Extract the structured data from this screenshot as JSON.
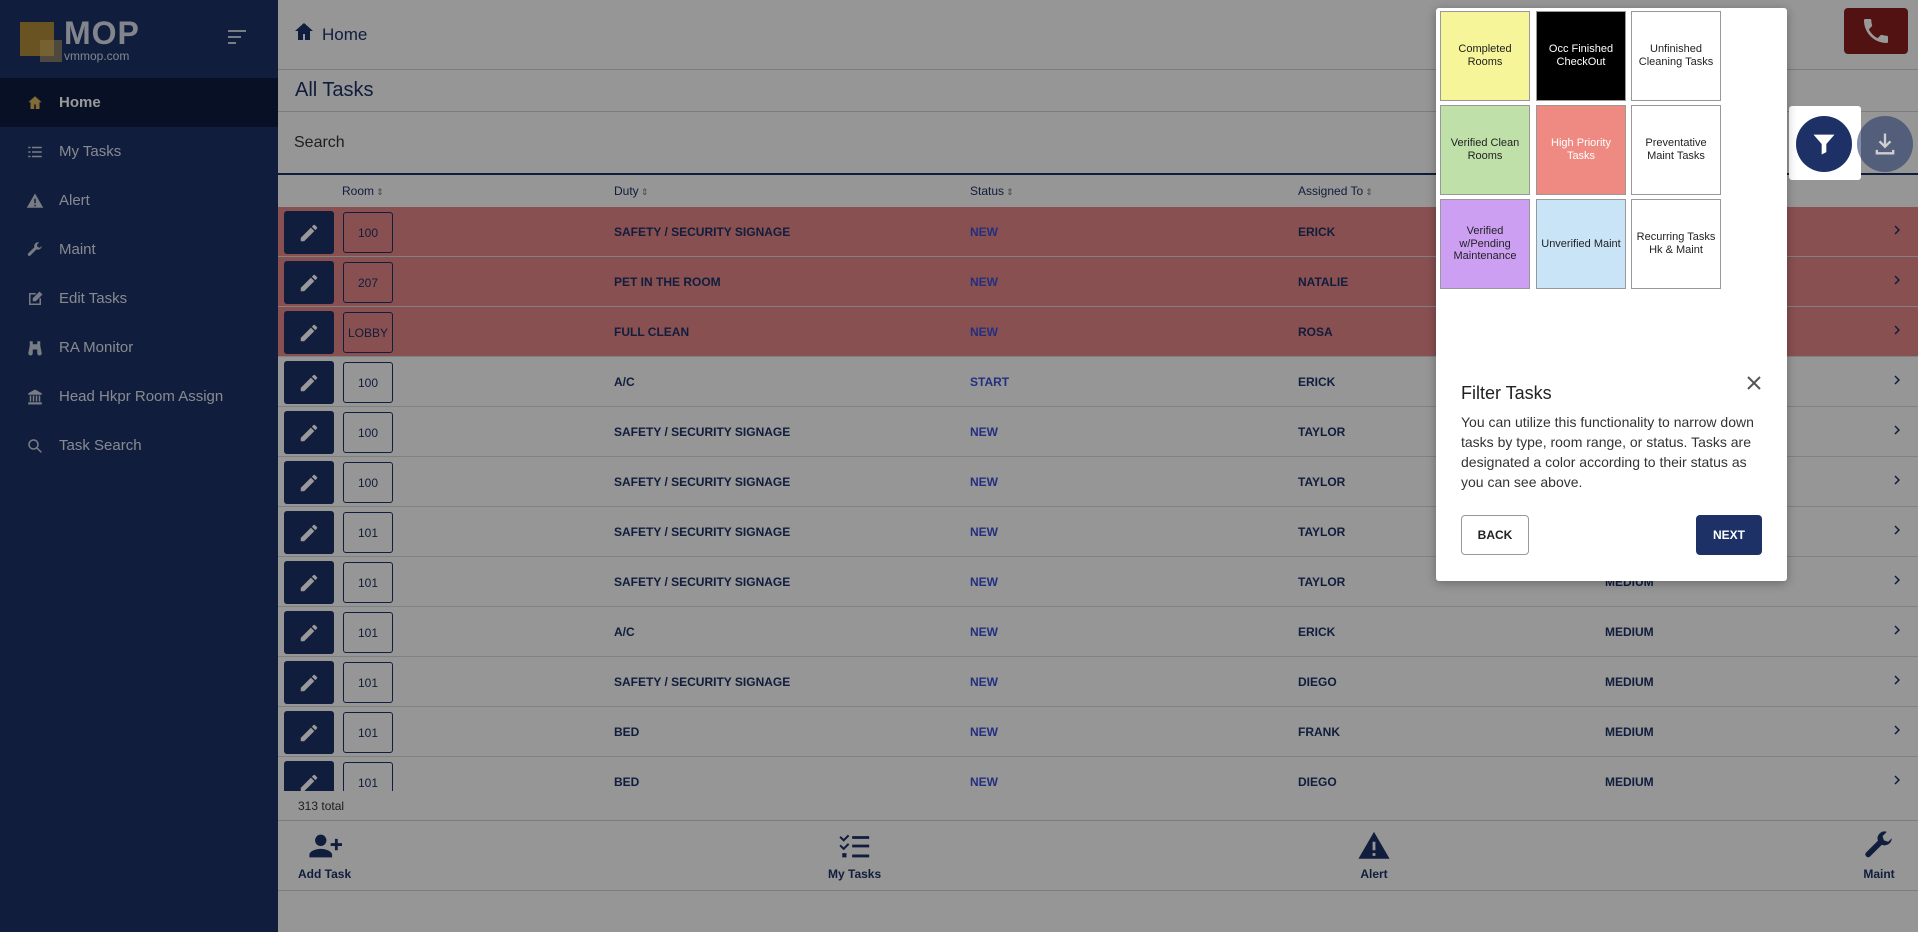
{
  "brand": {
    "name": "MOP",
    "domain": "vmmop.com"
  },
  "sidebar": {
    "items": [
      {
        "label": "Home",
        "icon": "home-icon",
        "active": true
      },
      {
        "label": "My Tasks",
        "icon": "tasks-list-icon"
      },
      {
        "label": "Alert",
        "icon": "warning-icon"
      },
      {
        "label": "Maint",
        "icon": "wrench-icon"
      },
      {
        "label": "Edit Tasks",
        "icon": "edit-icon"
      },
      {
        "label": "RA Monitor",
        "icon": "binoculars-icon"
      },
      {
        "label": "Head Hkpr Room Assign",
        "icon": "building-icon"
      },
      {
        "label": "Task Search",
        "icon": "search-icon"
      }
    ]
  },
  "header": {
    "breadcrumb": "Home"
  },
  "page": {
    "title": "All Tasks",
    "search_label": "Search"
  },
  "table": {
    "columns": {
      "room": "Room",
      "duty": "Duty",
      "status": "Status",
      "assigned": "Assigned To"
    },
    "rows": [
      {
        "room": "100",
        "duty": "SAFETY / SECURITY SIGNAGE",
        "status": "NEW",
        "assigned": "ERICK",
        "priority": "",
        "highlight": true
      },
      {
        "room": "207",
        "duty": "PET IN THE ROOM",
        "status": "NEW",
        "assigned": "NATALIE",
        "priority": "",
        "highlight": true
      },
      {
        "room": "LOBBY",
        "duty": "FULL CLEAN",
        "status": "NEW",
        "assigned": "ROSA",
        "priority": "",
        "highlight": true
      },
      {
        "room": "100",
        "duty": "A/C",
        "status": "START",
        "assigned": "ERICK",
        "priority": ""
      },
      {
        "room": "100",
        "duty": "SAFETY / SECURITY SIGNAGE",
        "status": "NEW",
        "assigned": "TAYLOR",
        "priority": ""
      },
      {
        "room": "100",
        "duty": "SAFETY / SECURITY SIGNAGE",
        "status": "NEW",
        "assigned": "TAYLOR",
        "priority": ""
      },
      {
        "room": "101",
        "duty": "SAFETY / SECURITY SIGNAGE",
        "status": "NEW",
        "assigned": "TAYLOR",
        "priority": ""
      },
      {
        "room": "101",
        "duty": "SAFETY / SECURITY SIGNAGE",
        "status": "NEW",
        "assigned": "TAYLOR",
        "priority": "MEDIUM"
      },
      {
        "room": "101",
        "duty": "A/C",
        "status": "NEW",
        "assigned": "ERICK",
        "priority": "MEDIUM"
      },
      {
        "room": "101",
        "duty": "SAFETY / SECURITY SIGNAGE",
        "status": "NEW",
        "assigned": "DIEGO",
        "priority": "MEDIUM"
      },
      {
        "room": "101",
        "duty": "BED",
        "status": "NEW",
        "assigned": "FRANK",
        "priority": "MEDIUM"
      },
      {
        "room": "101",
        "duty": "BED",
        "status": "NEW",
        "assigned": "DIEGO",
        "priority": "MEDIUM"
      }
    ],
    "total": "313 total"
  },
  "bottom_nav": [
    {
      "label": "Add Task",
      "icon": "add-user-icon"
    },
    {
      "label": "My Tasks",
      "icon": "tasks-list-icon"
    },
    {
      "label": "Alert",
      "icon": "warning-icon"
    },
    {
      "label": "Maint",
      "icon": "wrench-icon"
    }
  ],
  "popover": {
    "legend": [
      {
        "label": "Completed Rooms",
        "bg": "#f7f59a",
        "fg": "#222222"
      },
      {
        "label": "Occ Finished CheckOut",
        "bg": "#000000",
        "fg": "#ffffff"
      },
      {
        "label": "Unfinished Cleaning Tasks",
        "bg": "#ffffff",
        "fg": "#222222"
      },
      {
        "label": "Verified Clean Rooms",
        "bg": "#bfe0a8",
        "fg": "#222222"
      },
      {
        "label": "High Priority Tasks",
        "bg": "#ef8a82",
        "fg": "#ffffff"
      },
      {
        "label": "Preventative Maint Tasks",
        "bg": "#ffffff",
        "fg": "#222222"
      },
      {
        "label": "Verified w/Pending Maintenance",
        "bg": "#cc9ff2",
        "fg": "#222222"
      },
      {
        "label": "Unverified Maint",
        "bg": "#c9e3f7",
        "fg": "#222222"
      },
      {
        "label": "Recurring Tasks Hk & Maint",
        "bg": "#ffffff",
        "fg": "#222222"
      }
    ],
    "title": "Filter Tasks",
    "text": "You can utilize this functionality to narrow down tasks by type, room range, or status. Tasks are designated a color according to their status as you can see above.",
    "back_label": "BACK",
    "next_label": "NEXT"
  },
  "colors": {
    "primary": "#1d3166",
    "highlight_row": "#e58687",
    "status_link": "#3a4fd6",
    "phone": "#8a1f1f",
    "accent": "#d8b35a"
  }
}
